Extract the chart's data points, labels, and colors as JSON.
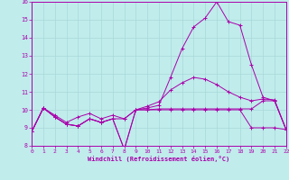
{
  "xlabel": "Windchill (Refroidissement éolien,°C)",
  "xlim": [
    0,
    22
  ],
  "ylim": [
    8,
    16
  ],
  "xticks": [
    0,
    1,
    2,
    3,
    4,
    5,
    6,
    7,
    8,
    9,
    10,
    11,
    12,
    13,
    14,
    15,
    16,
    17,
    18,
    19,
    20,
    21,
    22
  ],
  "yticks": [
    8,
    9,
    10,
    11,
    12,
    13,
    14,
    15,
    16
  ],
  "bg_color": "#c0ecec",
  "grid_color": "#a8d8d8",
  "line_color": "#aa00aa",
  "series": {
    "line1_x": [
      0,
      1,
      2,
      3,
      4,
      5,
      6,
      7,
      8,
      9,
      10,
      11,
      12,
      13,
      14,
      15,
      16,
      17,
      18,
      19,
      20,
      21,
      22
    ],
    "line1_y": [
      8.8,
      10.1,
      9.6,
      9.2,
      9.1,
      9.5,
      9.3,
      9.5,
      7.8,
      10.0,
      10.0,
      10.05,
      10.05,
      10.05,
      10.05,
      10.05,
      10.05,
      10.05,
      10.05,
      10.05,
      10.5,
      10.5,
      8.9
    ],
    "line2_x": [
      0,
      1,
      2,
      3,
      4,
      5,
      6,
      7,
      8,
      9,
      10,
      11,
      12,
      13,
      14,
      15,
      16,
      17,
      18,
      19,
      20,
      21,
      22
    ],
    "line2_y": [
      8.8,
      10.1,
      9.6,
      9.2,
      9.1,
      9.5,
      9.3,
      9.5,
      7.8,
      10.0,
      10.1,
      10.25,
      11.8,
      13.4,
      14.6,
      15.1,
      16.0,
      14.9,
      14.7,
      12.5,
      10.7,
      10.5,
      8.9
    ],
    "line3_x": [
      0,
      1,
      2,
      3,
      4,
      5,
      6,
      7,
      8,
      9,
      10,
      11,
      12,
      13,
      14,
      15,
      16,
      17,
      18,
      19,
      20,
      21,
      22
    ],
    "line3_y": [
      8.8,
      10.1,
      9.7,
      9.3,
      9.6,
      9.8,
      9.5,
      9.7,
      9.5,
      10.0,
      10.2,
      10.45,
      11.1,
      11.5,
      11.8,
      11.7,
      11.4,
      11.0,
      10.7,
      10.5,
      10.6,
      10.55,
      8.9
    ],
    "line4_x": [
      0,
      1,
      2,
      3,
      4,
      5,
      6,
      7,
      8,
      9,
      10,
      11,
      12,
      13,
      14,
      15,
      16,
      17,
      18,
      19,
      20,
      21,
      22
    ],
    "line4_y": [
      8.8,
      10.1,
      9.6,
      9.2,
      9.1,
      9.5,
      9.3,
      9.5,
      9.5,
      10.0,
      10.0,
      10.0,
      10.0,
      10.0,
      10.0,
      10.0,
      10.0,
      10.0,
      10.0,
      9.0,
      9.0,
      9.0,
      8.9
    ]
  }
}
